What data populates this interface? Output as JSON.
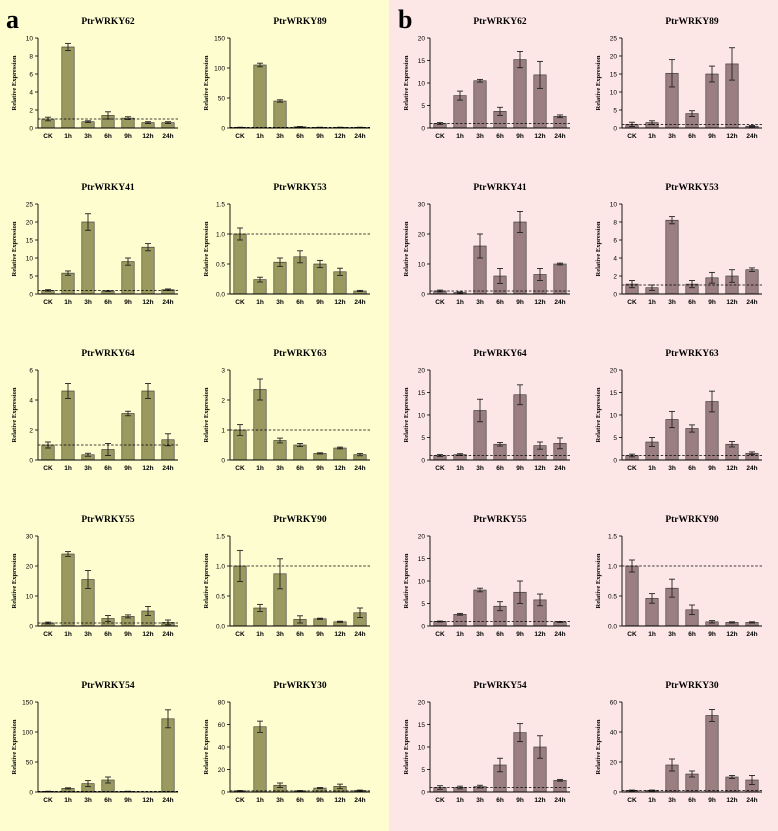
{
  "panels": [
    {
      "label": "a",
      "background": "#fdfdd0",
      "bar_color": "#9a9a60"
    },
    {
      "label": "b",
      "background": "#fde6e6",
      "bar_color": "#9a7e80"
    }
  ],
  "chart_data": [
    {
      "type": "bar",
      "panel": "a",
      "title": "PtrWRKY62",
      "ylabel": "Relative Expression",
      "categories": [
        "CK",
        "1h",
        "3h",
        "6h",
        "9h",
        "12h",
        "24h"
      ],
      "ylim": [
        0,
        10
      ],
      "yticks": [
        0,
        2,
        4,
        6,
        8,
        10
      ],
      "values": [
        1.0,
        9.0,
        0.7,
        1.4,
        1.1,
        0.6,
        0.6
      ],
      "errors": [
        0.2,
        0.4,
        0.1,
        0.4,
        0.15,
        0.1,
        0.1
      ],
      "reference": 1
    },
    {
      "type": "bar",
      "panel": "a",
      "title": "PtrWRKY89",
      "ylabel": "Relative Expression",
      "categories": [
        "CK",
        "1h",
        "3h",
        "6h",
        "9h",
        "12h",
        "24h"
      ],
      "ylim": [
        0,
        150
      ],
      "yticks": [
        0,
        50,
        100,
        150
      ],
      "values": [
        1,
        105,
        45,
        2,
        1,
        1,
        1
      ],
      "errors": [
        0.3,
        3,
        2,
        0.5,
        0.3,
        0.3,
        0.3
      ],
      "reference": 1
    },
    {
      "type": "bar",
      "panel": "a",
      "title": "PtrWRKY41",
      "ylabel": "Relative Expression",
      "categories": [
        "CK",
        "1h",
        "3h",
        "6h",
        "9h",
        "12h",
        "24h"
      ],
      "ylim": [
        0,
        25
      ],
      "yticks": [
        0,
        5,
        10,
        15,
        20,
        25
      ],
      "values": [
        1,
        5.8,
        20,
        0.8,
        9,
        13,
        1.2
      ],
      "errors": [
        0.2,
        0.6,
        2.3,
        0.1,
        1,
        1,
        0.2
      ],
      "reference": 1
    },
    {
      "type": "bar",
      "panel": "a",
      "title": "PtrWRKY53",
      "ylabel": "Relative Expression",
      "categories": [
        "CK",
        "1h",
        "3h",
        "6h",
        "9h",
        "12h",
        "24h"
      ],
      "ylim": [
        0,
        1.5
      ],
      "yticks": [
        0,
        0.5,
        1.0,
        1.5
      ],
      "values": [
        1.0,
        0.24,
        0.53,
        0.62,
        0.5,
        0.37,
        0.05
      ],
      "errors": [
        0.1,
        0.04,
        0.07,
        0.1,
        0.06,
        0.06,
        0.01
      ],
      "reference": 1
    },
    {
      "type": "bar",
      "panel": "a",
      "title": "PtrWRKY64",
      "ylabel": "Relative Expression",
      "categories": [
        "CK",
        "1h",
        "3h",
        "6h",
        "9h",
        "12h",
        "24h"
      ],
      "ylim": [
        0,
        6
      ],
      "yticks": [
        0,
        2,
        4,
        6
      ],
      "values": [
        1.0,
        4.6,
        0.35,
        0.7,
        3.1,
        4.6,
        1.35
      ],
      "errors": [
        0.2,
        0.5,
        0.1,
        0.4,
        0.15,
        0.5,
        0.4
      ],
      "reference": 1
    },
    {
      "type": "bar",
      "panel": "a",
      "title": "PtrWRKY63",
      "ylabel": "Relative Expression",
      "categories": [
        "CK",
        "1h",
        "3h",
        "6h",
        "9h",
        "12h",
        "24h"
      ],
      "ylim": [
        0,
        3
      ],
      "yticks": [
        0,
        1,
        2,
        3
      ],
      "values": [
        1.0,
        2.35,
        0.65,
        0.5,
        0.22,
        0.4,
        0.18
      ],
      "errors": [
        0.18,
        0.35,
        0.08,
        0.05,
        0.02,
        0.03,
        0.04
      ],
      "reference": 1
    },
    {
      "type": "bar",
      "panel": "a",
      "title": "PtrWRKY55",
      "ylabel": "Relative Expression",
      "categories": [
        "CK",
        "1h",
        "3h",
        "6h",
        "9h",
        "12h",
        "24h"
      ],
      "ylim": [
        0,
        30
      ],
      "yticks": [
        0,
        10,
        20,
        30
      ],
      "values": [
        1,
        24,
        15.5,
        2.5,
        3.2,
        5,
        1.2
      ],
      "errors": [
        0.3,
        0.8,
        3,
        1,
        0.5,
        1.5,
        0.8
      ],
      "reference": 1
    },
    {
      "type": "bar",
      "panel": "a",
      "title": "PtrWRKY90",
      "ylabel": "Relative Expression",
      "categories": [
        "CK",
        "1h",
        "3h",
        "6h",
        "9h",
        "12h",
        "24h"
      ],
      "ylim": [
        0,
        1.5
      ],
      "yticks": [
        0,
        0.5,
        1.0,
        1.5
      ],
      "values": [
        1.0,
        0.3,
        0.87,
        0.11,
        0.12,
        0.07,
        0.22
      ],
      "errors": [
        0.26,
        0.06,
        0.25,
        0.06,
        0.01,
        0.01,
        0.08
      ],
      "reference": 1
    },
    {
      "type": "bar",
      "panel": "a",
      "title": "PtrWRKY54",
      "ylabel": "Relative Expression",
      "categories": [
        "CK",
        "1h",
        "3h",
        "6h",
        "9h",
        "12h",
        "24h"
      ],
      "ylim": [
        0,
        150
      ],
      "yticks": [
        0,
        50,
        100,
        150
      ],
      "values": [
        1,
        6,
        14,
        20,
        1,
        0,
        122
      ],
      "errors": [
        0.3,
        1,
        5,
        5,
        0.3,
        0,
        15
      ],
      "reference": 1
    },
    {
      "type": "bar",
      "panel": "a",
      "title": "PtrWRKY30",
      "ylabel": "Relative Expression",
      "categories": [
        "CK",
        "1h",
        "3h",
        "6h",
        "9h",
        "12h",
        "24h"
      ],
      "ylim": [
        0,
        80
      ],
      "yticks": [
        0,
        20,
        40,
        60,
        80
      ],
      "values": [
        1,
        58,
        6,
        1,
        3.5,
        5,
        1.3
      ],
      "errors": [
        0.3,
        5,
        2,
        0.3,
        0.5,
        2,
        0.4
      ],
      "reference": 1
    },
    {
      "type": "bar",
      "panel": "b",
      "title": "PtrWRKY62",
      "ylabel": "Relative Expression",
      "categories": [
        "CK",
        "1h",
        "3h",
        "6h",
        "9h",
        "12h",
        "24h"
      ],
      "ylim": [
        0,
        20
      ],
      "yticks": [
        0,
        5,
        10,
        15,
        20
      ],
      "values": [
        1,
        7.2,
        10.5,
        3.7,
        15.2,
        11.8,
        2.6
      ],
      "errors": [
        0.2,
        1,
        0.3,
        0.9,
        1.8,
        3,
        0.3
      ],
      "reference": 1
    },
    {
      "type": "bar",
      "panel": "b",
      "title": "PtrWRKY89",
      "ylabel": "Relative Expression",
      "categories": [
        "CK",
        "1h",
        "3h",
        "6h",
        "9h",
        "12h",
        "24h"
      ],
      "ylim": [
        0,
        25
      ],
      "yticks": [
        0,
        5,
        10,
        15,
        20,
        25
      ],
      "values": [
        1,
        1.5,
        15.2,
        4,
        15,
        17.8,
        0.5
      ],
      "errors": [
        0.6,
        0.5,
        3.8,
        0.8,
        2.2,
        4.5,
        0.2
      ],
      "reference": 1
    },
    {
      "type": "bar",
      "panel": "b",
      "title": "PtrWRKY41",
      "ylabel": "Relative Expression",
      "categories": [
        "CK",
        "1h",
        "3h",
        "6h",
        "9h",
        "12h",
        "24h"
      ],
      "ylim": [
        0,
        30
      ],
      "yticks": [
        0,
        10,
        20,
        30
      ],
      "values": [
        1,
        0.5,
        16,
        6,
        24,
        6.5,
        10
      ],
      "errors": [
        0.3,
        0.2,
        4,
        2.5,
        3.5,
        2,
        0.3
      ],
      "reference": 1
    },
    {
      "type": "bar",
      "panel": "b",
      "title": "PtrWRKY53",
      "ylabel": "Relative Expression",
      "categories": [
        "CK",
        "1h",
        "3h",
        "6h",
        "9h",
        "12h",
        "24h"
      ],
      "ylim": [
        0,
        10
      ],
      "yticks": [
        0,
        2,
        4,
        6,
        8,
        10
      ],
      "values": [
        1.1,
        0.7,
        8.2,
        1.1,
        1.8,
        2,
        2.7
      ],
      "errors": [
        0.4,
        0.3,
        0.4,
        0.4,
        0.6,
        0.7,
        0.2
      ],
      "reference": 1
    },
    {
      "type": "bar",
      "panel": "b",
      "title": "PtrWRKY64",
      "ylabel": "Relative Expression",
      "categories": [
        "CK",
        "1h",
        "3h",
        "6h",
        "9h",
        "12h",
        "24h"
      ],
      "ylim": [
        0,
        20
      ],
      "yticks": [
        0,
        5,
        10,
        15,
        20
      ],
      "values": [
        1,
        1.2,
        11,
        3.5,
        14.5,
        3.2,
        3.7
      ],
      "errors": [
        0.2,
        0.2,
        2.5,
        0.4,
        2.2,
        0.8,
        1.2
      ],
      "reference": 1
    },
    {
      "type": "bar",
      "panel": "b",
      "title": "PtrWRKY63",
      "ylabel": "Relative Expression",
      "categories": [
        "CK",
        "1h",
        "3h",
        "6h",
        "9h",
        "12h",
        "24h"
      ],
      "ylim": [
        0,
        20
      ],
      "yticks": [
        0,
        5,
        10,
        15,
        20
      ],
      "values": [
        1,
        4,
        9,
        7,
        13,
        3.5,
        1.5
      ],
      "errors": [
        0.3,
        1,
        1.8,
        0.8,
        2.3,
        0.6,
        0.3
      ],
      "reference": 1
    },
    {
      "type": "bar",
      "panel": "b",
      "title": "PtrWRKY55",
      "ylabel": "Relative Expression",
      "categories": [
        "CK",
        "1h",
        "3h",
        "6h",
        "9h",
        "12h",
        "24h"
      ],
      "ylim": [
        0,
        20
      ],
      "yticks": [
        0,
        5,
        10,
        15,
        20
      ],
      "values": [
        1,
        2.6,
        8,
        4.4,
        7.5,
        5.8,
        0.9
      ],
      "errors": [
        0.1,
        0.2,
        0.4,
        1,
        2.5,
        1.3,
        0.1
      ],
      "reference": 1
    },
    {
      "type": "bar",
      "panel": "b",
      "title": "PtrWRKY90",
      "ylabel": "Relative Expression",
      "categories": [
        "CK",
        "1h",
        "3h",
        "6h",
        "9h",
        "12h",
        "24h"
      ],
      "ylim": [
        0,
        1.5
      ],
      "yticks": [
        0,
        0.5,
        1.0,
        1.5
      ],
      "values": [
        1.0,
        0.46,
        0.63,
        0.27,
        0.07,
        0.06,
        0.06
      ],
      "errors": [
        0.1,
        0.08,
        0.15,
        0.08,
        0.02,
        0.01,
        0.01
      ],
      "reference": 1
    },
    {
      "type": "bar",
      "panel": "b",
      "title": "PtrWRKY54",
      "ylabel": "Relative Expression",
      "categories": [
        "CK",
        "1h",
        "3h",
        "6h",
        "9h",
        "12h",
        "24h"
      ],
      "ylim": [
        0,
        20
      ],
      "yticks": [
        0,
        5,
        10,
        15,
        20
      ],
      "values": [
        1,
        1,
        1.2,
        6,
        13.2,
        10,
        2.6
      ],
      "errors": [
        0.4,
        0.3,
        0.3,
        1.5,
        2,
        2.5,
        0.2
      ],
      "reference": 1
    },
    {
      "type": "bar",
      "panel": "b",
      "title": "PtrWRKY30",
      "ylabel": "Relative Expression",
      "categories": [
        "CK",
        "1h",
        "3h",
        "6h",
        "9h",
        "12h",
        "24h"
      ],
      "ylim": [
        0,
        60
      ],
      "yticks": [
        0,
        20,
        40,
        60
      ],
      "values": [
        1,
        1,
        18,
        12,
        51,
        10,
        8
      ],
      "errors": [
        0.3,
        0.3,
        4,
        2,
        4,
        1,
        3
      ],
      "reference": 1
    }
  ]
}
